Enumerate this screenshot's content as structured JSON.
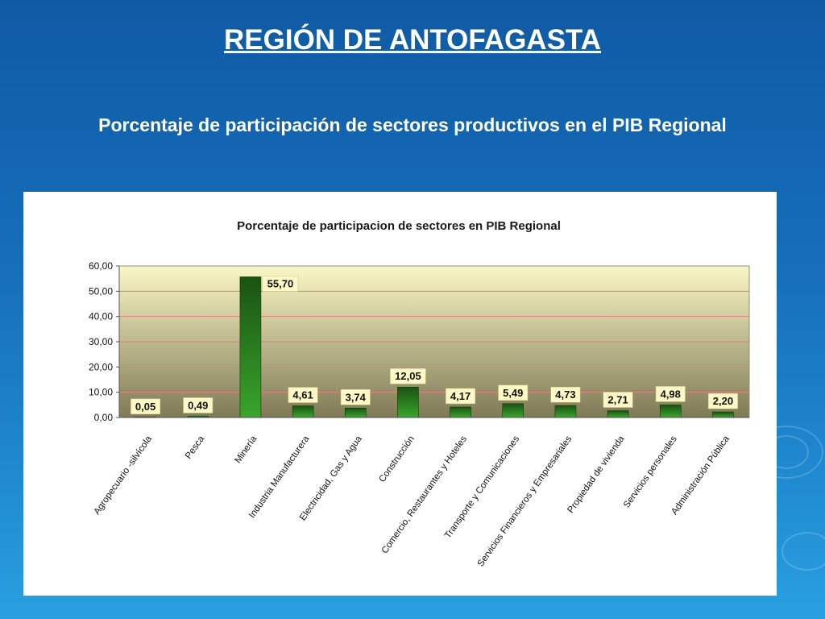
{
  "slide": {
    "title": "REGIÓN DE ANTOFAGASTA",
    "subtitle": "Porcentaje de participación de sectores productivos en el PIB Regional"
  },
  "colors": {
    "background": "#176fbb",
    "bar": "#2e8b22",
    "bar_highlight": "#3aa52c",
    "plot_top": "#fbf7c6",
    "plot_bottom": "#7f7a56",
    "gridline": "#e08080",
    "label_box": "#fdf8c4"
  },
  "chart_data": {
    "type": "bar",
    "title": "Porcentaje de participacion de sectores en PIB Regional",
    "xlabel": "",
    "ylabel": "",
    "ylim": [
      0,
      60
    ],
    "yticks": [
      "0,00",
      "10,00",
      "20,00",
      "30,00",
      "40,00",
      "50,00",
      "60,00"
    ],
    "grid": true,
    "legend": "none",
    "categories": [
      "Agropecuario -silvícola",
      "Pesca",
      "Minería",
      "Industria Manufacturera",
      "Electricidad, Gas y Agua",
      "Construcción",
      "Comercio, Restaurantes y Hoteles",
      "Transporte y Comunicaciones",
      "Servicios Financieros y Empresariales",
      "Propiedad de vivienda",
      "Servicios personales",
      "Administración Pública"
    ],
    "values": [
      0.05,
      0.49,
      55.7,
      4.61,
      3.74,
      12.05,
      4.17,
      5.49,
      4.73,
      2.71,
      4.98,
      2.2
    ],
    "value_labels": [
      "0,05",
      "0,49",
      "55,70",
      "4,61",
      "3,74",
      "12,05",
      "4,17",
      "5,49",
      "4,73",
      "2,71",
      "4,98",
      "2,20"
    ]
  }
}
